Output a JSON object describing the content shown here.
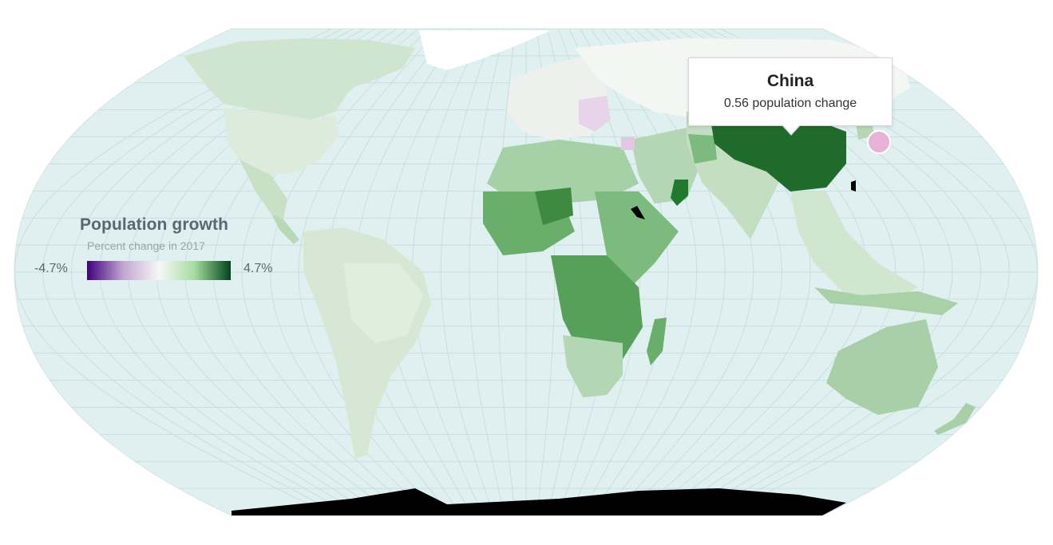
{
  "legend": {
    "title": "Population growth",
    "subtitle": "Percent change in 2017",
    "min_label": "-4.7%",
    "max_label": "4.7%",
    "min_value": -4.7,
    "max_value": 4.7,
    "colors": [
      "#3f007d",
      "#c2a5cf",
      "#f7f7f7",
      "#a6dba0",
      "#00441b"
    ]
  },
  "tooltip": {
    "country": "China",
    "value_text": "0.56 population change"
  },
  "map": {
    "ocean_color": "#e0f0f0",
    "graticule_color": "#c5dcdc",
    "land_colors": {
      "no_data": "#000000",
      "greenland": "#ffffff",
      "north_america": "#dcebdc",
      "south_america": "#d6e8d4",
      "africa": "#7dbb7f",
      "central_africa": "#56a05a",
      "europe": "#f0eef3",
      "russia": "#f4f6f4",
      "asia": "#c4dec2",
      "china": "#1f6b2b",
      "australia": "#a8cfa7",
      "hover_marker": "#e8b2d8"
    }
  }
}
